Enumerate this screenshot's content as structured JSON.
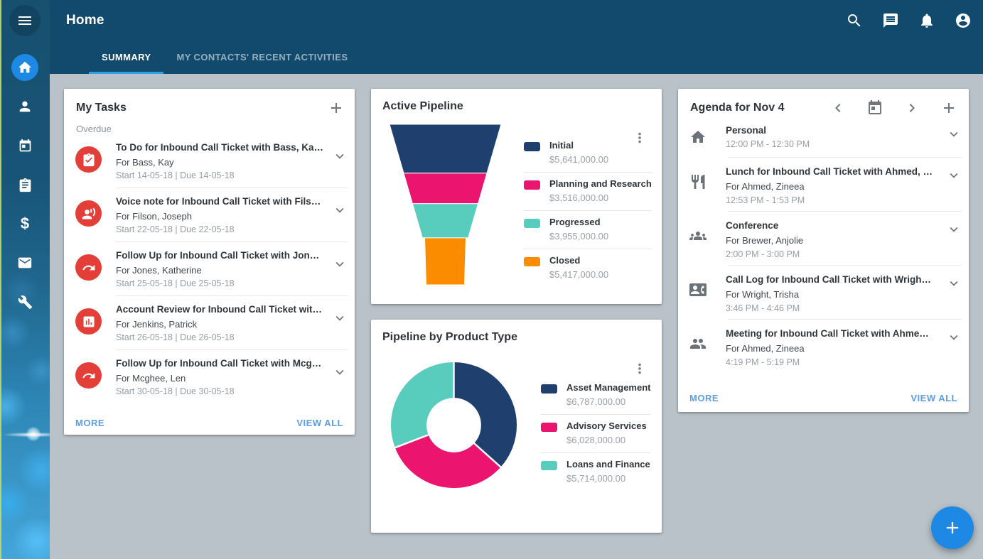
{
  "app": {
    "title": "Home",
    "tabs": [
      {
        "label": "SUMMARY",
        "active": true
      },
      {
        "label": "MY CONTACTS' RECENT ACTIVITIES",
        "active": false
      }
    ]
  },
  "colors": {
    "topbar": "#114a6d",
    "tab_underline": "#2f9fe8",
    "content_bg": "#b8c2c8",
    "accent_blue": "#1e88e5",
    "link_blue": "#5b9ee6",
    "task_icon_red": "#e33e38",
    "navy": "#1f406f",
    "pink": "#eb146e",
    "teal": "#58cdbe",
    "orange": "#fb8c00"
  },
  "my_tasks": {
    "title": "My Tasks",
    "section_label": "Overdue",
    "items": [
      {
        "title": "To Do for Inbound Call Ticket with Bass, Ka…",
        "for": "For Bass, Kay",
        "dates": "Start 14-05-18 | Due 14-05-18",
        "icon": "todo-check"
      },
      {
        "title": "Voice note for Inbound Call Ticket with Fils…",
        "for": "For Filson, Joseph",
        "dates": "Start 22-05-18 | Due 22-05-18",
        "icon": "voice-note"
      },
      {
        "title": "Follow Up for Inbound Call Ticket with Jon…",
        "for": "For Jones, Katherine",
        "dates": "Start 25-05-18 | Due 25-05-18",
        "icon": "follow-up-arrow"
      },
      {
        "title": "Account Review for Inbound Call Ticket wit…",
        "for": "For Jenkins, Patrick",
        "dates": "Start 26-05-18 | Due 26-05-18",
        "icon": "bar-chart"
      },
      {
        "title": "Follow Up for Inbound Call Ticket with Mcg…",
        "for": "For Mcghee, Len",
        "dates": "Start 30-05-18 | Due 30-05-18",
        "icon": "follow-up-arrow"
      }
    ],
    "more_label": "MORE",
    "view_all_label": "VIEW ALL"
  },
  "agenda": {
    "title": "Agenda for Nov 4",
    "items": [
      {
        "title": "Personal",
        "for": "",
        "time": "12:00 PM - 12:30 PM",
        "icon": "home-event"
      },
      {
        "title": "Lunch for Inbound Call Ticket with Ahmed, …",
        "for": "For Ahmed, Zineea",
        "time": "12:53 PM - 1:53 PM",
        "icon": "restaurant"
      },
      {
        "title": "Conference",
        "for": "For Brewer, Anjolie",
        "time": "2:00 PM - 3:00 PM",
        "icon": "groups"
      },
      {
        "title": "Call Log for Inbound Call Ticket with Wrigh…",
        "for": "For Wright, Trisha",
        "time": "3:46 PM - 4:46 PM",
        "icon": "contact-phone"
      },
      {
        "title": "Meeting for Inbound Call Ticket with Ahme…",
        "for": "For Ahmed, Zineea",
        "time": "4:19 PM - 5:19 PM",
        "icon": "people"
      }
    ],
    "more_label": "MORE",
    "view_all_label": "VIEW ALL"
  },
  "chart_data": [
    {
      "type": "funnel",
      "title": "Active Pipeline",
      "categories": [
        "Initial",
        "Planning and Research",
        "Progressed",
        "Closed"
      ],
      "values": [
        5641000,
        3516000,
        3955000,
        5417000
      ],
      "value_labels": [
        "$5,641,000.00",
        "$3,516,000.00",
        "$3,955,000.00",
        "$5,417,000.00"
      ],
      "colors": [
        "#1f406f",
        "#eb146e",
        "#58cdbe",
        "#fb8c00"
      ],
      "legend_position": "right"
    },
    {
      "type": "donut",
      "title": "Pipeline by Product Type",
      "categories": [
        "Asset Management",
        "Advisory Services",
        "Loans and Finance"
      ],
      "values": [
        6787000,
        6028000,
        5714000
      ],
      "value_labels": [
        "$6,787,000.00",
        "$6,028,000.00",
        "$5,714,000.00"
      ],
      "colors": [
        "#1f406f",
        "#eb146e",
        "#58cdbe"
      ],
      "legend_position": "right"
    }
  ]
}
